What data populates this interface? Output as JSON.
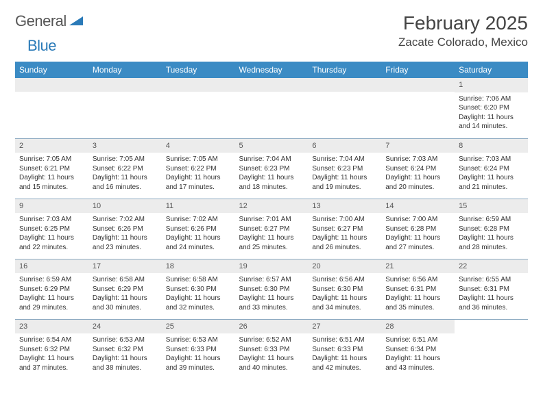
{
  "logo": {
    "text1": "General",
    "text2": "Blue"
  },
  "header": {
    "month": "February 2025",
    "location": "Zacate Colorado, Mexico"
  },
  "colors": {
    "header_bg": "#3b8bc4",
    "header_text": "#ffffff",
    "daynum_bg": "#ececec",
    "border": "#8aa8c0",
    "logo_blue": "#2a7ab8"
  },
  "weekdays": [
    "Sunday",
    "Monday",
    "Tuesday",
    "Wednesday",
    "Thursday",
    "Friday",
    "Saturday"
  ],
  "weeks": [
    [
      null,
      null,
      null,
      null,
      null,
      null,
      {
        "n": "1",
        "sr": "Sunrise: 7:06 AM",
        "ss": "Sunset: 6:20 PM",
        "dl": "Daylight: 11 hours and 14 minutes."
      }
    ],
    [
      {
        "n": "2",
        "sr": "Sunrise: 7:05 AM",
        "ss": "Sunset: 6:21 PM",
        "dl": "Daylight: 11 hours and 15 minutes."
      },
      {
        "n": "3",
        "sr": "Sunrise: 7:05 AM",
        "ss": "Sunset: 6:22 PM",
        "dl": "Daylight: 11 hours and 16 minutes."
      },
      {
        "n": "4",
        "sr": "Sunrise: 7:05 AM",
        "ss": "Sunset: 6:22 PM",
        "dl": "Daylight: 11 hours and 17 minutes."
      },
      {
        "n": "5",
        "sr": "Sunrise: 7:04 AM",
        "ss": "Sunset: 6:23 PM",
        "dl": "Daylight: 11 hours and 18 minutes."
      },
      {
        "n": "6",
        "sr": "Sunrise: 7:04 AM",
        "ss": "Sunset: 6:23 PM",
        "dl": "Daylight: 11 hours and 19 minutes."
      },
      {
        "n": "7",
        "sr": "Sunrise: 7:03 AM",
        "ss": "Sunset: 6:24 PM",
        "dl": "Daylight: 11 hours and 20 minutes."
      },
      {
        "n": "8",
        "sr": "Sunrise: 7:03 AM",
        "ss": "Sunset: 6:24 PM",
        "dl": "Daylight: 11 hours and 21 minutes."
      }
    ],
    [
      {
        "n": "9",
        "sr": "Sunrise: 7:03 AM",
        "ss": "Sunset: 6:25 PM",
        "dl": "Daylight: 11 hours and 22 minutes."
      },
      {
        "n": "10",
        "sr": "Sunrise: 7:02 AM",
        "ss": "Sunset: 6:26 PM",
        "dl": "Daylight: 11 hours and 23 minutes."
      },
      {
        "n": "11",
        "sr": "Sunrise: 7:02 AM",
        "ss": "Sunset: 6:26 PM",
        "dl": "Daylight: 11 hours and 24 minutes."
      },
      {
        "n": "12",
        "sr": "Sunrise: 7:01 AM",
        "ss": "Sunset: 6:27 PM",
        "dl": "Daylight: 11 hours and 25 minutes."
      },
      {
        "n": "13",
        "sr": "Sunrise: 7:00 AM",
        "ss": "Sunset: 6:27 PM",
        "dl": "Daylight: 11 hours and 26 minutes."
      },
      {
        "n": "14",
        "sr": "Sunrise: 7:00 AM",
        "ss": "Sunset: 6:28 PM",
        "dl": "Daylight: 11 hours and 27 minutes."
      },
      {
        "n": "15",
        "sr": "Sunrise: 6:59 AM",
        "ss": "Sunset: 6:28 PM",
        "dl": "Daylight: 11 hours and 28 minutes."
      }
    ],
    [
      {
        "n": "16",
        "sr": "Sunrise: 6:59 AM",
        "ss": "Sunset: 6:29 PM",
        "dl": "Daylight: 11 hours and 29 minutes."
      },
      {
        "n": "17",
        "sr": "Sunrise: 6:58 AM",
        "ss": "Sunset: 6:29 PM",
        "dl": "Daylight: 11 hours and 30 minutes."
      },
      {
        "n": "18",
        "sr": "Sunrise: 6:58 AM",
        "ss": "Sunset: 6:30 PM",
        "dl": "Daylight: 11 hours and 32 minutes."
      },
      {
        "n": "19",
        "sr": "Sunrise: 6:57 AM",
        "ss": "Sunset: 6:30 PM",
        "dl": "Daylight: 11 hours and 33 minutes."
      },
      {
        "n": "20",
        "sr": "Sunrise: 6:56 AM",
        "ss": "Sunset: 6:30 PM",
        "dl": "Daylight: 11 hours and 34 minutes."
      },
      {
        "n": "21",
        "sr": "Sunrise: 6:56 AM",
        "ss": "Sunset: 6:31 PM",
        "dl": "Daylight: 11 hours and 35 minutes."
      },
      {
        "n": "22",
        "sr": "Sunrise: 6:55 AM",
        "ss": "Sunset: 6:31 PM",
        "dl": "Daylight: 11 hours and 36 minutes."
      }
    ],
    [
      {
        "n": "23",
        "sr": "Sunrise: 6:54 AM",
        "ss": "Sunset: 6:32 PM",
        "dl": "Daylight: 11 hours and 37 minutes."
      },
      {
        "n": "24",
        "sr": "Sunrise: 6:53 AM",
        "ss": "Sunset: 6:32 PM",
        "dl": "Daylight: 11 hours and 38 minutes."
      },
      {
        "n": "25",
        "sr": "Sunrise: 6:53 AM",
        "ss": "Sunset: 6:33 PM",
        "dl": "Daylight: 11 hours and 39 minutes."
      },
      {
        "n": "26",
        "sr": "Sunrise: 6:52 AM",
        "ss": "Sunset: 6:33 PM",
        "dl": "Daylight: 11 hours and 40 minutes."
      },
      {
        "n": "27",
        "sr": "Sunrise: 6:51 AM",
        "ss": "Sunset: 6:33 PM",
        "dl": "Daylight: 11 hours and 42 minutes."
      },
      {
        "n": "28",
        "sr": "Sunrise: 6:51 AM",
        "ss": "Sunset: 6:34 PM",
        "dl": "Daylight: 11 hours and 43 minutes."
      },
      null
    ]
  ]
}
